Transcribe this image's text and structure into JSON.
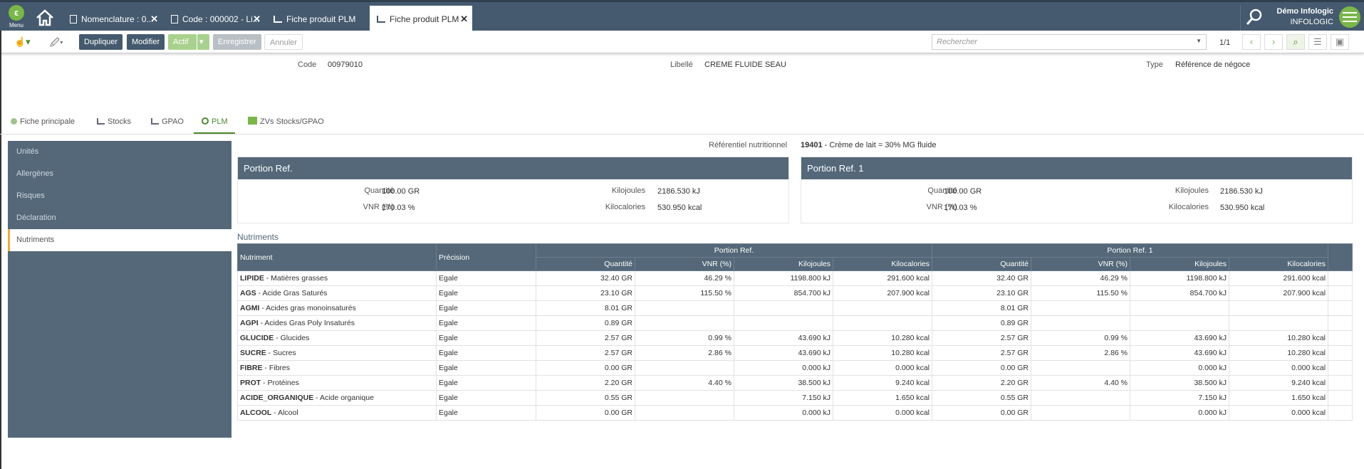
{
  "topbar": {
    "menu_label": "Menu",
    "tabs": [
      {
        "label": "Nomenclature : 0..."
      },
      {
        "label": "Code : 000002 - Li..."
      },
      {
        "label": "Fiche produit PLM"
      },
      {
        "label": "Fiche produit PLM"
      }
    ],
    "user_name": "Démo Infologic",
    "user_company": "INFOLOGIC"
  },
  "toolbar": {
    "dupliquer": "Dupliquer",
    "modifier": "Modifier",
    "actif": "Actif",
    "enregistrer": "Enregistrer",
    "annuler": "Annuler",
    "search_placeholder": "Rechercher",
    "pager": "1/1"
  },
  "header": {
    "code_label": "Code",
    "code_value": "00979010",
    "libelle_label": "Libellé",
    "libelle_value": "CREME FLUIDE SEAU",
    "type_label": "Type",
    "type_value": "Référence de négoce"
  },
  "main_tabs": [
    {
      "label": "Fiche principale"
    },
    {
      "label": "Stocks"
    },
    {
      "label": "GPAO"
    },
    {
      "label": "PLM"
    },
    {
      "label": "ZVs Stocks/GPAO"
    }
  ],
  "sidenav": [
    {
      "label": "Unités"
    },
    {
      "label": "Allergènes"
    },
    {
      "label": "Risques"
    },
    {
      "label": "Déclaration"
    },
    {
      "label": "Nutriments"
    }
  ],
  "nutri_ref": {
    "label": "Référentiel nutritionnel",
    "code": "19401",
    "desc": " - Crème de lait = 30% MG fluide"
  },
  "portions": [
    {
      "title": "Portion Ref.",
      "quantite_label": "Quantité",
      "quantite": "100.00 GR",
      "vnr_label": "VNR (%)",
      "vnr": "170.03 %",
      "kj_label": "Kilojoules",
      "kj": "2186.530 kJ",
      "kcal_label": "Kilocalories",
      "kcal": "530.950 kcal"
    },
    {
      "title": "Portion Ref. 1",
      "quantite_label": "Quantité",
      "quantite": "100.00 GR",
      "vnr_label": "VNR (%)",
      "vnr": "170.03 %",
      "kj_label": "Kilojoules",
      "kj": "2186.530 kJ",
      "kcal_label": "Kilocalories",
      "kcal": "530.950 kcal"
    }
  ],
  "nutriments": {
    "title": "Nutriments",
    "col_nutriment": "Nutriment",
    "col_precision": "Précision",
    "group1": "Portion Ref.",
    "group2": "Portion Ref. 1",
    "sub": [
      "Quantité",
      "VNR (%)",
      "Kilojoules",
      "Kilocalories",
      "Quantité",
      "VNR (%)",
      "Kilojoules",
      "Kilocalories"
    ],
    "rows": [
      {
        "code": "LIPIDE",
        "name": " - Matières grasses",
        "precision": "Egale",
        "v": [
          "32.40 GR",
          "46.29 %",
          "1198.800 kJ",
          "291.600 kcal",
          "32.40 GR",
          "46.29 %",
          "1198.800 kJ",
          "291.600 kcal"
        ]
      },
      {
        "code": "AGS",
        "name": " - Acide Gras Saturés",
        "precision": "Egale",
        "v": [
          "23.10 GR",
          "115.50 %",
          "854.700 kJ",
          "207.900 kcal",
          "23.10 GR",
          "115.50 %",
          "854.700 kJ",
          "207.900 kcal"
        ]
      },
      {
        "code": "AGMI",
        "name": " - Acides gras monoinsaturés",
        "precision": "Egale",
        "v": [
          "8.01 GR",
          "",
          "",
          "",
          "8.01 GR",
          "",
          "",
          ""
        ]
      },
      {
        "code": "AGPI",
        "name": " - Acides Gras Poly Insaturés",
        "precision": "Egale",
        "v": [
          "0.89 GR",
          "",
          "",
          "",
          "0.89 GR",
          "",
          "",
          ""
        ]
      },
      {
        "code": "GLUCIDE",
        "name": " - Glucides",
        "precision": "Egale",
        "v": [
          "2.57 GR",
          "0.99 %",
          "43.690 kJ",
          "10.280 kcal",
          "2.57 GR",
          "0.99 %",
          "43.690 kJ",
          "10.280 kcal"
        ]
      },
      {
        "code": "SUCRE",
        "name": " - Sucres",
        "precision": "Egale",
        "v": [
          "2.57 GR",
          "2.86 %",
          "43.690 kJ",
          "10.280 kcal",
          "2.57 GR",
          "2.86 %",
          "43.690 kJ",
          "10.280 kcal"
        ]
      },
      {
        "code": "FIBRE",
        "name": " - Fibres",
        "precision": "Egale",
        "v": [
          "0.00 GR",
          "",
          "0.000 kJ",
          "0.000 kcal",
          "0.00 GR",
          "",
          "0.000 kJ",
          "0.000 kcal"
        ]
      },
      {
        "code": "PROT",
        "name": " - Protéines",
        "precision": "Egale",
        "v": [
          "2.20 GR",
          "4.40 %",
          "38.500 kJ",
          "9.240 kcal",
          "2.20 GR",
          "4.40 %",
          "38.500 kJ",
          "9.240 kcal"
        ]
      },
      {
        "code": "ACIDE_ORGANIQUE",
        "name": " - Acide organique",
        "precision": "Egale",
        "v": [
          "0.55 GR",
          "",
          "7.150 kJ",
          "1.650 kcal",
          "0.55 GR",
          "",
          "7.150 kJ",
          "1.650 kcal"
        ]
      },
      {
        "code": "ALCOOL",
        "name": " - Alcool",
        "precision": "Egale",
        "v": [
          "0.00 GR",
          "",
          "0.000 kJ",
          "0.000 kcal",
          "0.00 GR",
          "",
          "0.000 kJ",
          "0.000 kcal"
        ]
      }
    ]
  },
  "colors": {
    "header_bg": "#455a6e",
    "panel_bg": "#546879",
    "accent_green": "#7ab648",
    "active_tab_green": "#4a8a2a",
    "active_side_marker": "#f0a840"
  }
}
